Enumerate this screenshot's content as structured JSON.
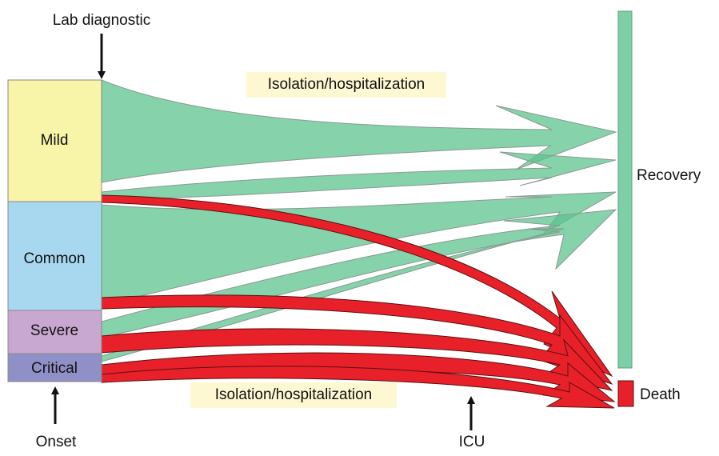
{
  "labels": {
    "top_marker": "Lab diagnostic",
    "onset": "Onset",
    "icu": "ICU",
    "isolation_top": "Isolation/hospitalization",
    "isolation_bottom": "Isolation/hospitalization"
  },
  "stages": [
    "Mild",
    "Common",
    "Severe",
    "Critical"
  ],
  "outcomes": {
    "recovery": "Recovery",
    "death": "Death"
  }
}
